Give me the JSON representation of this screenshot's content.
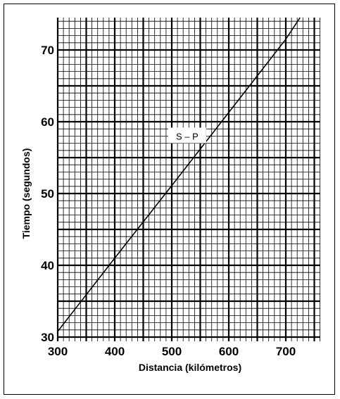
{
  "chart_data": {
    "type": "line",
    "title": "",
    "xlabel": "Distancia (kilómetros)",
    "ylabel": "Tiempo (segundos)",
    "xlim": [
      300,
      760
    ],
    "ylim": [
      29.5,
      74.5
    ],
    "x_ticks": [
      300,
      400,
      500,
      600,
      700
    ],
    "y_ticks": [
      30,
      40,
      50,
      60,
      70
    ],
    "grid": true,
    "series": [
      {
        "name": "",
        "x": [
          300,
          400,
          500,
          600,
          700,
          725
        ],
        "y": [
          30.8,
          41.0,
          51.1,
          61.3,
          71.5,
          74.5
        ]
      }
    ],
    "annotations": [
      {
        "text": "S – P",
        "x": 527,
        "y": 58
      }
    ]
  }
}
